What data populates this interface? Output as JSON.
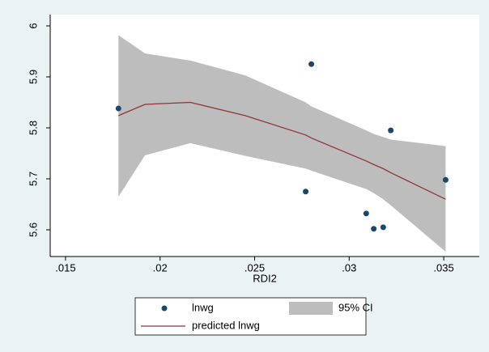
{
  "chart_data": {
    "type": "scatter",
    "xlabel": "RDI2",
    "xlim": [
      0.01419,
      0.03688
    ],
    "ylim": [
      5.5476,
      6.0222
    ],
    "xticks": [
      {
        "value": 0.015,
        "label": ".015"
      },
      {
        "value": 0.02,
        "label": ".02"
      },
      {
        "value": 0.025,
        "label": ".025"
      },
      {
        "value": 0.03,
        "label": ".03"
      },
      {
        "value": 0.035,
        "label": ".035"
      }
    ],
    "yticks": [
      5.6,
      5.7,
      5.8,
      5.9,
      6
    ],
    "series": [
      {
        "name": "lnwg",
        "kind": "scatter",
        "color": "#1a476f",
        "x": [
          0.0178,
          0.028,
          0.0277,
          0.0309,
          0.0322,
          0.0313,
          0.0318,
          0.0351
        ],
        "values": [
          5.838,
          5.925,
          5.675,
          5.632,
          5.795,
          5.602,
          5.605,
          5.698
        ]
      },
      {
        "name": "95% CI",
        "kind": "area",
        "color": "#bdbdbd",
        "x": [
          0.0178,
          0.0192,
          0.0216,
          0.0245,
          0.0277,
          0.028,
          0.0309,
          0.0313,
          0.0318,
          0.0322,
          0.0351
        ],
        "lower": [
          5.665,
          5.746,
          5.77,
          5.745,
          5.72,
          5.716,
          5.68,
          5.672,
          5.66,
          5.648,
          5.557
        ],
        "upper": [
          5.982,
          5.946,
          5.932,
          5.903,
          5.85,
          5.842,
          5.795,
          5.788,
          5.782,
          5.777,
          5.764
        ]
      },
      {
        "name": "predicted lnwg",
        "kind": "line",
        "color": "#90353b",
        "x": [
          0.0178,
          0.0192,
          0.0216,
          0.0245,
          0.0277,
          0.028,
          0.0309,
          0.0313,
          0.0318,
          0.0322,
          0.0351
        ],
        "values": [
          5.824,
          5.846,
          5.85,
          5.824,
          5.786,
          5.78,
          5.735,
          5.728,
          5.72,
          5.712,
          5.66
        ]
      }
    ]
  }
}
